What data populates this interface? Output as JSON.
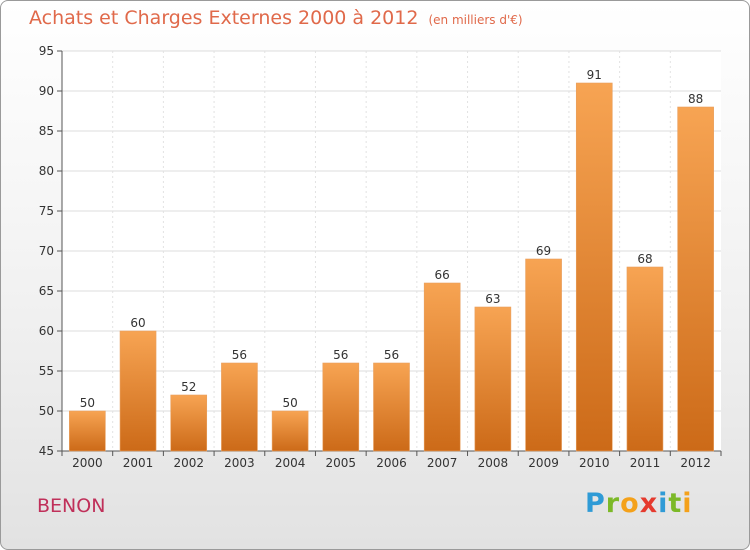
{
  "header": {
    "title": "Achats et Charges Externes 2000 à 2012",
    "subtitle": "(en milliers d'€)"
  },
  "footer": {
    "place": "BENON",
    "brand": [
      "P",
      "r",
      "o",
      "x",
      "i",
      "t",
      "i"
    ],
    "brand_colors": [
      "#2f9bd6",
      "#7cb928",
      "#f4a11a",
      "#e53a2e",
      "#2f9bd6",
      "#7cb928",
      "#f4a11a"
    ]
  },
  "chart_data": {
    "type": "bar",
    "title": "Achats et Charges Externes 2000 à 2012",
    "subtitle": "(en milliers d'€)",
    "categories": [
      "2000",
      "2001",
      "2002",
      "2003",
      "2004",
      "2005",
      "2006",
      "2007",
      "2008",
      "2009",
      "2010",
      "2011",
      "2012"
    ],
    "values": [
      50,
      60,
      52,
      56,
      50,
      56,
      56,
      66,
      63,
      69,
      91,
      68,
      88
    ],
    "ylim": [
      45,
      95
    ],
    "yticks": [
      45,
      50,
      55,
      60,
      65,
      70,
      75,
      80,
      85,
      90,
      95
    ],
    "grid": true,
    "bar_color_top": "#f7a453",
    "bar_color_bottom": "#cc6a18"
  }
}
